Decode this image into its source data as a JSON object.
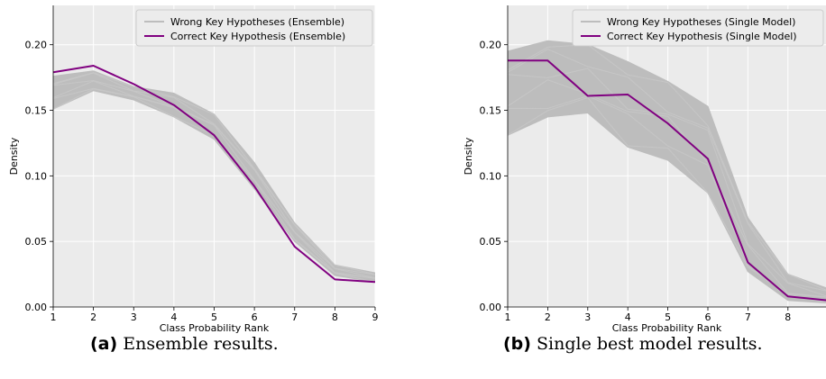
{
  "figures": [
    {
      "letter": "(a)",
      "caption": "Ensemble results."
    },
    {
      "letter": "(b)",
      "caption": "Single best model results."
    }
  ],
  "chart_data": [
    {
      "type": "line",
      "title": "",
      "xlabel": "Class Probability Rank",
      "ylabel": "Density",
      "xlim": [
        1,
        9
      ],
      "ylim": [
        0,
        0.23
      ],
      "xticks": [
        1,
        2,
        3,
        4,
        5,
        6,
        7,
        8,
        9
      ],
      "yticks": [
        0.0,
        0.05,
        0.1,
        0.15,
        0.2
      ],
      "ytick_labels": [
        "0.00",
        "0.05",
        "0.10",
        "0.15",
        "0.20"
      ],
      "grid": true,
      "legend": "top-right",
      "background": "#ebebeb",
      "series": [
        {
          "name": "Wrong Key Hypotheses (Ensemble)",
          "color": "#bdbdbd",
          "kind": "band",
          "x": [
            1,
            2,
            3,
            4,
            5,
            6,
            7,
            8,
            9
          ],
          "lower": [
            0.151,
            0.165,
            0.158,
            0.145,
            0.128,
            0.09,
            0.05,
            0.024,
            0.019
          ],
          "upper": [
            0.176,
            0.18,
            0.168,
            0.163,
            0.147,
            0.11,
            0.064,
            0.032,
            0.026
          ]
        },
        {
          "name": "Correct Key Hypothesis (Ensemble)",
          "color": "#800080",
          "kind": "line",
          "x": [
            1,
            2,
            3,
            4,
            5,
            6,
            7,
            8,
            9
          ],
          "values": [
            0.179,
            0.184,
            0.17,
            0.154,
            0.131,
            0.092,
            0.046,
            0.021,
            0.019
          ]
        }
      ]
    },
    {
      "type": "line",
      "title": "",
      "xlabel": "Class Probability Rank",
      "ylabel": "Density",
      "xlim": [
        1,
        9
      ],
      "ylim": [
        0,
        0.23
      ],
      "xticks": [
        1,
        2,
        3,
        4,
        5,
        6,
        7,
        8
      ],
      "yticks": [
        0.0,
        0.05,
        0.1,
        0.15,
        0.2
      ],
      "ytick_labels": [
        "0.00",
        "0.05",
        "0.10",
        "0.15",
        "0.20"
      ],
      "grid": true,
      "legend": "top-right",
      "background": "#ebebeb",
      "series": [
        {
          "name": "Wrong Key Hypotheses (Single Model)",
          "color": "#bdbdbd",
          "kind": "band",
          "x": [
            1,
            2,
            3,
            4,
            5,
            6,
            7,
            8,
            9
          ],
          "lower": [
            0.131,
            0.145,
            0.148,
            0.122,
            0.112,
            0.087,
            0.027,
            0.005,
            0.003
          ],
          "upper": [
            0.195,
            0.203,
            0.2,
            0.187,
            0.172,
            0.153,
            0.068,
            0.025,
            0.014
          ]
        },
        {
          "name": "Correct Key Hypothesis (Single Model)",
          "color": "#800080",
          "kind": "line",
          "x": [
            1,
            2,
            3,
            4,
            5,
            6,
            7,
            8,
            9
          ],
          "values": [
            0.188,
            0.188,
            0.161,
            0.162,
            0.14,
            0.113,
            0.034,
            0.008,
            0.005
          ]
        }
      ]
    }
  ]
}
